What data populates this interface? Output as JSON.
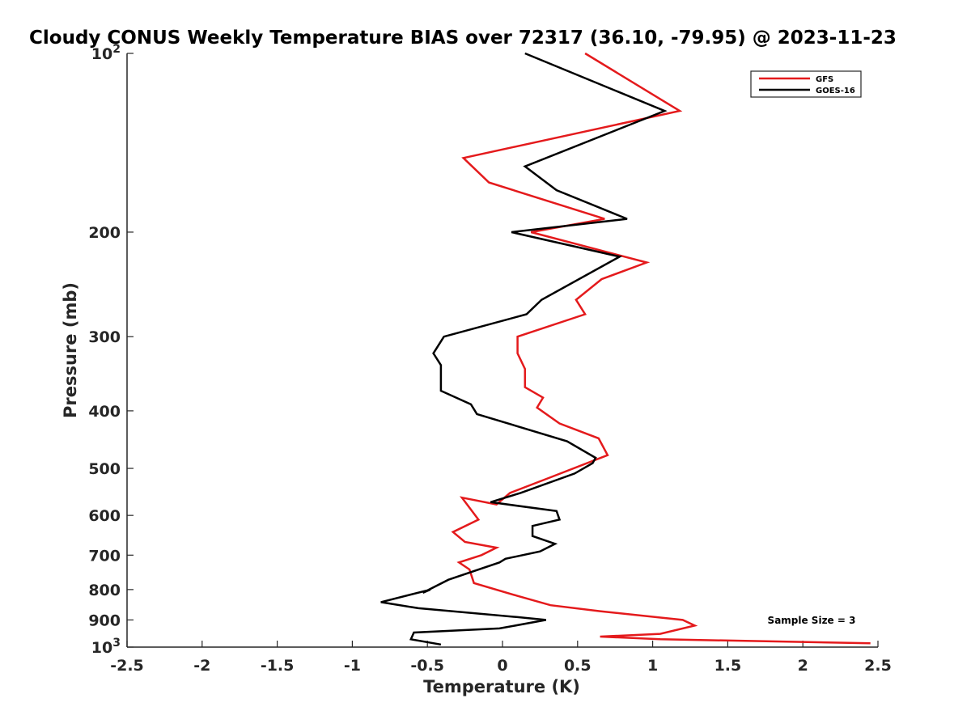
{
  "chart_data": {
    "type": "line",
    "title": "Cloudy CONUS Weekly Temperature BIAS over 72317 (36.10, -79.95) @ 2023-11-23",
    "xlabel": "Temperature (K)",
    "ylabel": "Pressure (mb)",
    "xlim": [
      -2.5,
      2.5
    ],
    "ylim": [
      1000,
      100
    ],
    "y_scale": "log",
    "y_reversed": true,
    "x_ticks": [
      -2.5,
      -2,
      -1.5,
      -1,
      -0.5,
      0,
      0.5,
      1,
      1.5,
      2,
      2.5
    ],
    "x_tick_labels": [
      "-2.5",
      "-2",
      "-1.5",
      "-1",
      "-0.5",
      "0",
      "0.5",
      "1",
      "1.5",
      "2",
      "2.5"
    ],
    "y_ticks": [
      {
        "value": 100,
        "base": "10",
        "exp": "2"
      },
      {
        "value": 200,
        "label": "200"
      },
      {
        "value": 300,
        "label": "300"
      },
      {
        "value": 400,
        "label": "400"
      },
      {
        "value": 500,
        "label": "500"
      },
      {
        "value": 600,
        "label": "600"
      },
      {
        "value": 700,
        "label": "700"
      },
      {
        "value": 800,
        "label": "800"
      },
      {
        "value": 900,
        "label": "900"
      },
      {
        "value": 1000,
        "base": "10",
        "exp": "3"
      }
    ],
    "grid": false,
    "legend_position": "top-right",
    "annotation": "Sample Size = 3",
    "series": [
      {
        "name": "GFS",
        "color": "#e41a1c",
        "points": [
          [
            0.55,
            100
          ],
          [
            1.18,
            125
          ],
          [
            -0.26,
            150
          ],
          [
            -0.09,
            165
          ],
          [
            0.68,
            190
          ],
          [
            0.19,
            200
          ],
          [
            0.96,
            225
          ],
          [
            0.66,
            240
          ],
          [
            0.49,
            260
          ],
          [
            0.55,
            275
          ],
          [
            0.1,
            300
          ],
          [
            0.1,
            320
          ],
          [
            0.15,
            340
          ],
          [
            0.15,
            365
          ],
          [
            0.27,
            380
          ],
          [
            0.23,
            395
          ],
          [
            0.38,
            420
          ],
          [
            0.64,
            445
          ],
          [
            0.7,
            475
          ],
          [
            0.3,
            520
          ],
          [
            0.05,
            550
          ],
          [
            -0.04,
            575
          ],
          [
            -0.27,
            560
          ],
          [
            -0.16,
            610
          ],
          [
            -0.33,
            640
          ],
          [
            -0.25,
            665
          ],
          [
            -0.04,
            680
          ],
          [
            -0.14,
            700
          ],
          [
            -0.29,
            720
          ],
          [
            -0.22,
            740
          ],
          [
            -0.19,
            780
          ],
          [
            0.1,
            820
          ],
          [
            0.32,
            850
          ],
          [
            0.65,
            870
          ],
          [
            1.2,
            900
          ],
          [
            1.28,
            920
          ],
          [
            1.05,
            950
          ],
          [
            0.65,
            960
          ],
          [
            1.05,
            970
          ],
          [
            2.45,
            985
          ]
        ]
      },
      {
        "name": "GOES-16",
        "color": "#000000",
        "points": [
          [
            0.15,
            100
          ],
          [
            1.08,
            125
          ],
          [
            0.15,
            155
          ],
          [
            0.36,
            170
          ],
          [
            0.83,
            190
          ],
          [
            0.06,
            200
          ],
          [
            0.78,
            220
          ],
          [
            0.26,
            260
          ],
          [
            0.16,
            275
          ],
          [
            -0.39,
            300
          ],
          [
            -0.46,
            320
          ],
          [
            -0.41,
            335
          ],
          [
            -0.41,
            370
          ],
          [
            -0.21,
            390
          ],
          [
            -0.17,
            405
          ],
          [
            0.43,
            450
          ],
          [
            0.62,
            480
          ],
          [
            0.6,
            490
          ],
          [
            0.48,
            510
          ],
          [
            0.12,
            550
          ],
          [
            -0.08,
            570
          ],
          [
            0.36,
            590
          ],
          [
            0.38,
            610
          ],
          [
            0.2,
            625
          ],
          [
            0.2,
            650
          ],
          [
            0.35,
            670
          ],
          [
            0.25,
            690
          ],
          [
            0.02,
            710
          ],
          [
            -0.02,
            720
          ],
          [
            -0.36,
            770
          ],
          [
            -0.53,
            810
          ],
          [
            -0.48,
            800
          ],
          [
            -0.81,
            840
          ],
          [
            -0.56,
            860
          ],
          [
            0.1,
            890
          ],
          [
            0.29,
            900
          ],
          [
            -0.02,
            930
          ],
          [
            -0.59,
            945
          ],
          [
            -0.61,
            970
          ],
          [
            -0.41,
            990
          ]
        ]
      }
    ]
  }
}
